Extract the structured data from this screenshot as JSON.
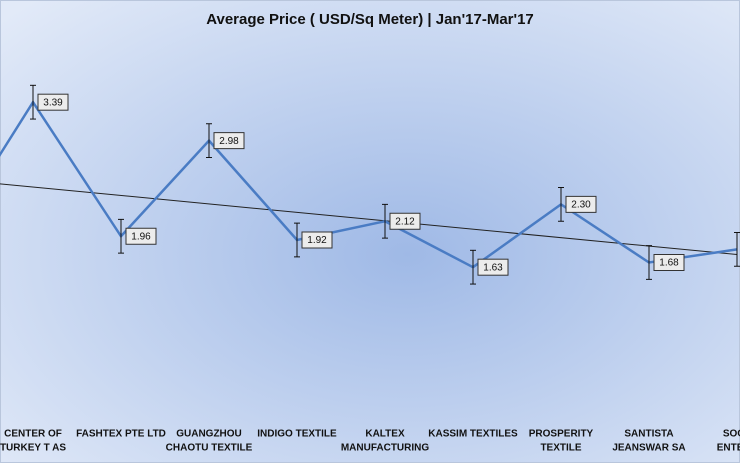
{
  "chart_data": {
    "type": "line",
    "title": "Average Price ( USD/Sq Meter) | Jan'17-Mar'17",
    "categories": [
      null,
      [
        "CENTER OF",
        "TURKEY T AS"
      ],
      [
        "FASHTEX PTE LTD"
      ],
      [
        "GUANGZHOU",
        "CHAOTU TEXTILE"
      ],
      [
        "INDIGO TEXTILE"
      ],
      [
        "KALTEX",
        "MANUFACTURING"
      ],
      [
        "KASSIM TEXTILES"
      ],
      [
        "PROSPERITY",
        "TEXTILE"
      ],
      [
        "SANTISTA",
        "JEANSWAR SA"
      ],
      [
        "SOOF",
        "ENTERP"
      ]
    ],
    "values": [
      1.9,
      3.39,
      1.96,
      2.98,
      1.92,
      2.12,
      1.63,
      2.3,
      1.68,
      1.82
    ],
    "value_labels": [
      null,
      "3.39",
      "1.96",
      "2.98",
      "1.92",
      "2.12",
      "1.63",
      "2.30",
      "1.68",
      null
    ],
    "errors": [
      0.18,
      0.18,
      0.18,
      0.18,
      0.18,
      0.18,
      0.18,
      0.18,
      0.18,
      0.18
    ],
    "color": "#4a7cc4",
    "trendline": true
  }
}
